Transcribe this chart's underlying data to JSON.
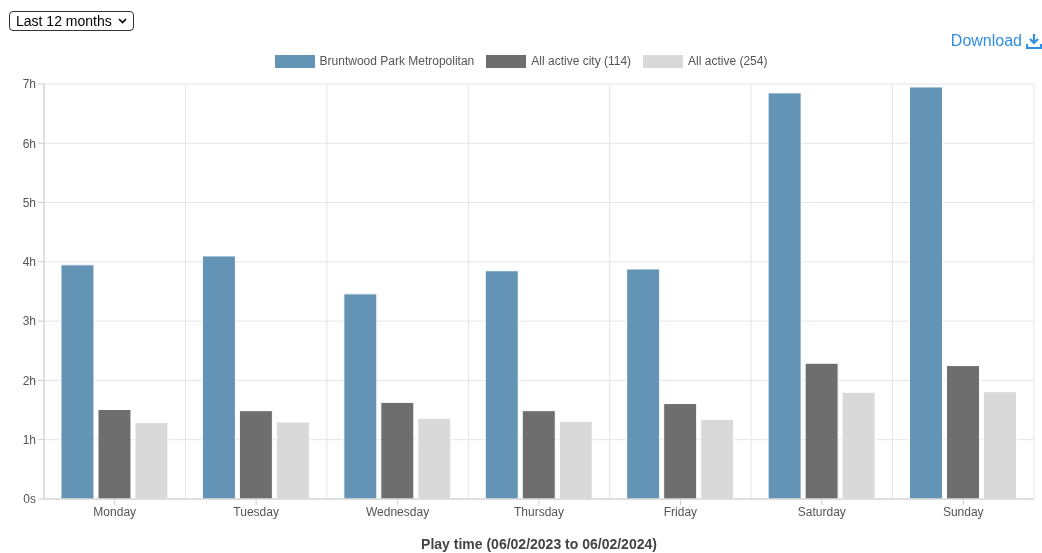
{
  "chart_data": {
    "type": "bar",
    "xlabel": "Play time (06/02/2023 to 06/02/2024)",
    "annotations": [
      "Last 12 months",
      "Download"
    ],
    "categories": [
      "Monday",
      "Tuesday",
      "Wednesday",
      "Thursday",
      "Friday",
      "Saturday",
      "Sunday"
    ],
    "series": [
      {
        "name": "Bruntwood Park Metropolitan",
        "color": "#6394b6",
        "values": [
          3.95,
          4.1,
          3.46,
          3.85,
          3.88,
          6.85,
          6.95
        ]
      },
      {
        "name": "All active city (114)",
        "color": "#6e6e6e",
        "values": [
          1.51,
          1.49,
          1.63,
          1.49,
          1.61,
          2.29,
          2.25
        ]
      },
      {
        "name": "All active (254)",
        "color": "#d9d9d9",
        "values": [
          1.29,
          1.3,
          1.36,
          1.31,
          1.34,
          1.8,
          1.81
        ]
      }
    ],
    "ylim": [
      0,
      7
    ],
    "yticks": [
      {
        "value": 0,
        "label": "0s"
      },
      {
        "value": 1,
        "label": "1h"
      },
      {
        "value": 2,
        "label": "2h"
      },
      {
        "value": 3,
        "label": "3h"
      },
      {
        "value": 4,
        "label": "4h"
      },
      {
        "value": 5,
        "label": "5h"
      },
      {
        "value": 6,
        "label": "6h"
      },
      {
        "value": 7,
        "label": "7h"
      }
    ],
    "grid": true,
    "legend": "top"
  }
}
